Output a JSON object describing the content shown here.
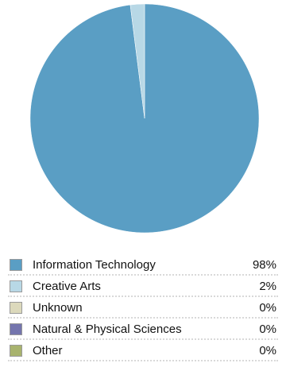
{
  "chart_data": {
    "type": "pie",
    "title": "",
    "categories": [
      "Information Technology",
      "Creative Arts",
      "Unknown",
      "Natural & Physical Sciences",
      "Other"
    ],
    "values": [
      98,
      2,
      0,
      0,
      0
    ],
    "value_labels": [
      "98%",
      "2%",
      "0%",
      "0%",
      "0%"
    ],
    "colors": [
      "#5a9ec4",
      "#b8d8e6",
      "#dcd9bc",
      "#7475ad",
      "#a8b36e"
    ],
    "start_angle": "top, clockwise",
    "legend_placement": "bottom"
  }
}
